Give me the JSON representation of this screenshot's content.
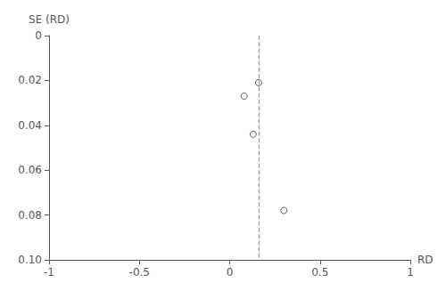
{
  "chart_data": {
    "type": "scatter",
    "x": [
      0.08,
      0.16,
      0.13,
      0.3
    ],
    "values": [
      0.027,
      0.021,
      0.044,
      0.078
    ],
    "xlabel": "RD",
    "ylabel": "SE (RD)",
    "xlim": [
      -1,
      1
    ],
    "ylim": [
      0.1,
      0
    ],
    "xticks": [
      -1,
      -0.5,
      0,
      0.5,
      1
    ],
    "yticks": [
      0,
      0.02,
      0.04,
      0.06,
      0.08,
      {
        "value": 0.1,
        "label": "0.10"
      }
    ],
    "color": "#333333",
    "marker": "open_circle",
    "grid": false,
    "vlines": [
      {
        "x": 0.16,
        "color": "#8899aa",
        "line_style": "dashed"
      }
    ]
  }
}
